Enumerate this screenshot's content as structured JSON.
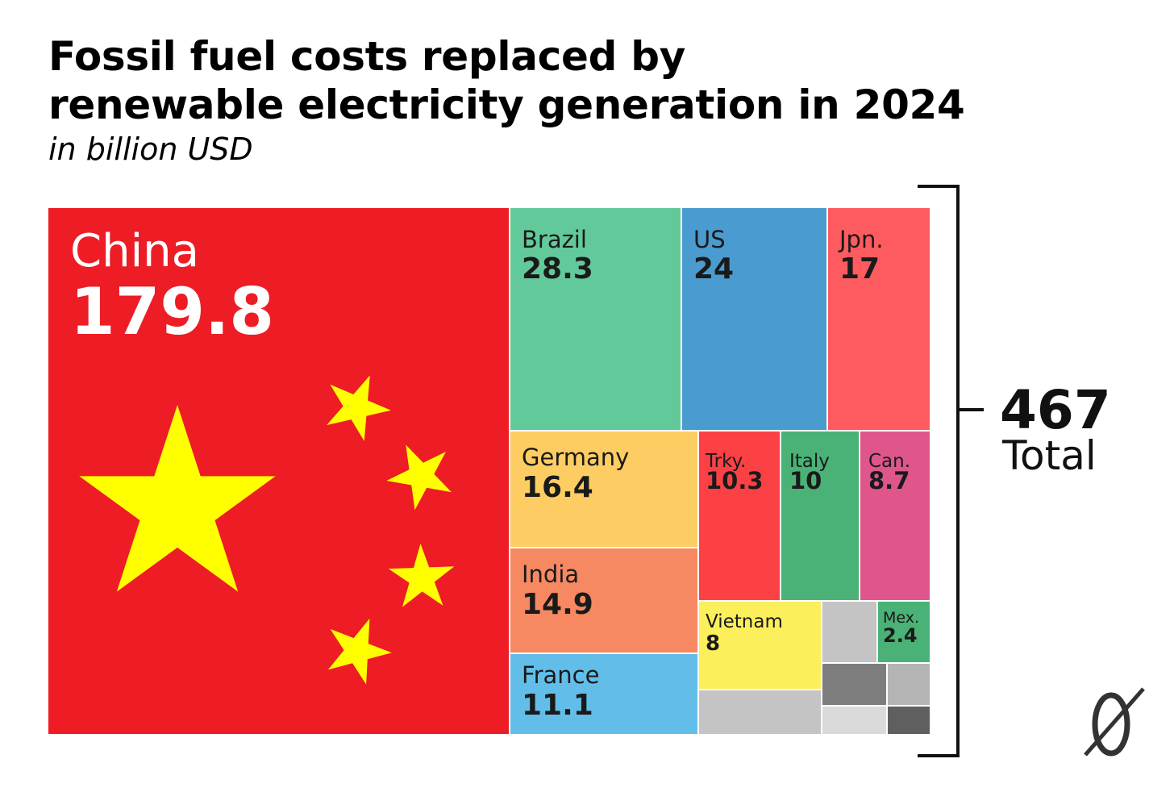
{
  "chart_data": {
    "type": "treemap",
    "title_line1": "Fossil fuel costs replaced by",
    "title_line2": "renewable electricity generation in 2024",
    "subtitle": "in billion USD",
    "total": {
      "value": "467",
      "label": "Total"
    },
    "cells": [
      {
        "name": "China",
        "value": 179.8,
        "display": "179.8",
        "color": "#ee1c25",
        "text": "#ffffff"
      },
      {
        "name": "Brazil",
        "value": 28.3,
        "display": "28.3",
        "color": "#62c99a",
        "text": "#1a1a1a"
      },
      {
        "name": "US",
        "value": 24,
        "display": "24",
        "color": "#4a9bd0",
        "text": "#1a1a1a"
      },
      {
        "name": "Jpn.",
        "value": 17,
        "display": "17",
        "color": "#fd5b5f",
        "text": "#1a1a1a"
      },
      {
        "name": "Germany",
        "value": 16.4,
        "display": "16.4",
        "color": "#fdcd63",
        "text": "#1a1a1a"
      },
      {
        "name": "India",
        "value": 14.9,
        "display": "14.9",
        "color": "#f68862",
        "text": "#1a1a1a"
      },
      {
        "name": "France",
        "value": 11.1,
        "display": "11.1",
        "color": "#62bee9",
        "text": "#1a1a1a"
      },
      {
        "name": "Trky.",
        "value": 10.3,
        "display": "10.3",
        "color": "#fc4145",
        "text": "#1a1a1a"
      },
      {
        "name": "Italy",
        "value": 10,
        "display": "10",
        "color": "#4ab276",
        "text": "#1a1a1a"
      },
      {
        "name": "Can.",
        "value": 8.7,
        "display": "8.7",
        "color": "#de568b",
        "text": "#1a1a1a"
      },
      {
        "name": "Vietnam",
        "value": 8,
        "display": "8",
        "color": "#fcef5c",
        "text": "#1a1a1a"
      },
      {
        "name": "Mex.",
        "value": 2.4,
        "display": "2.4",
        "color": "#4ab276",
        "text": "#1a1a1a"
      }
    ],
    "unlabeled_cells_colors": [
      "#c4c4c4",
      "#c4c4c4",
      "#7d7d7d",
      "#b4b4b4",
      "#dadada",
      "#5f5f5f"
    ]
  }
}
